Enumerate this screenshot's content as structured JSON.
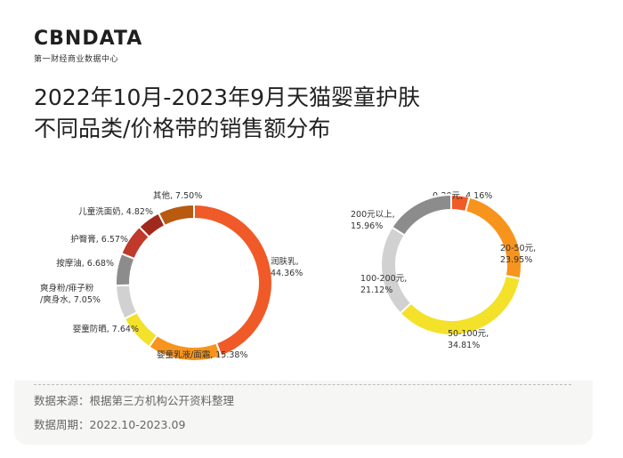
{
  "brand": {
    "logo_text": "CBNDATA",
    "tagline": "第一财经商业数据中心"
  },
  "title_line1": "2022年10月-2023年9月天猫婴童护肤",
  "title_line2": "不同品类/价格带的销售额分布",
  "chart_data": [
    {
      "type": "pie",
      "subtype": "donut",
      "slices": [
        {
          "label": "润肤乳",
          "value": 44.36,
          "value_text": "44.36%",
          "color": "#f05a28"
        },
        {
          "label": "婴童乳液/面霜",
          "value": 15.38,
          "value_text": "15.38%",
          "color": "#f7941d"
        },
        {
          "label": "婴童防晒",
          "value": 7.64,
          "value_text": "7.64%",
          "color": "#f3e12a"
        },
        {
          "label": "爽身粉/痱子粉/爽身水",
          "value": 7.05,
          "value_text": "7.05%",
          "color": "#d1d1d1"
        },
        {
          "label": "按摩油",
          "value": 6.68,
          "value_text": "6.68%",
          "color": "#8c8c8c"
        },
        {
          "label": "护臀膏",
          "value": 6.57,
          "value_text": "6.57%",
          "color": "#c0392b"
        },
        {
          "label": "儿童洗面奶",
          "value": 4.82,
          "value_text": "4.82%",
          "color": "#a0281c"
        },
        {
          "label": "其他",
          "value": 7.5,
          "value_text": "7.50%",
          "color": "#b85a0f"
        }
      ]
    },
    {
      "type": "pie",
      "subtype": "donut",
      "slices": [
        {
          "label": "0-20元",
          "value": 4.16,
          "value_text": "4.16%",
          "color": "#f05a28"
        },
        {
          "label": "20-50元",
          "value": 23.95,
          "value_text": "23.95%",
          "color": "#f7941d"
        },
        {
          "label": "50-100元",
          "value": 34.81,
          "value_text": "34.81%",
          "color": "#f3e12a"
        },
        {
          "label": "100-200元",
          "value": 21.12,
          "value_text": "21.12%",
          "color": "#d1d1d1"
        },
        {
          "label": "200元以上",
          "value": 15.96,
          "value_text": "15.96%",
          "color": "#8c8c8c"
        }
      ]
    }
  ],
  "footer": {
    "source": "数据来源：根据第三方机构公开资料整理",
    "period": "数据周期：2022.10-2023.09"
  }
}
